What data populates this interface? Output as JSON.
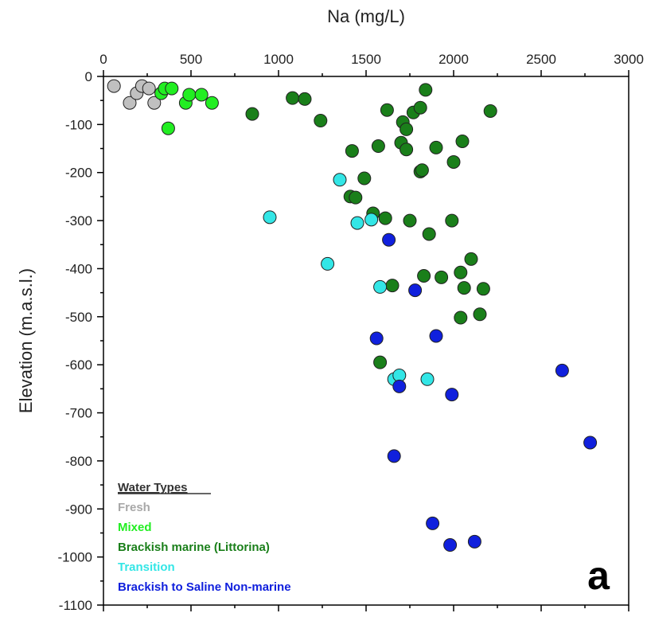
{
  "chart_data": {
    "type": "scatter",
    "xlabel": "Na (mg/L)",
    "ylabel": "Elevation (m.a.s.l.)",
    "xlim": [
      0,
      3000
    ],
    "ylim": [
      -1100,
      0
    ],
    "xticks": [
      0,
      500,
      1000,
      1500,
      2000,
      2500,
      3000
    ],
    "yticks": [
      0,
      -100,
      -200,
      -300,
      -400,
      -500,
      -600,
      -700,
      -800,
      -900,
      -1000,
      -1100
    ],
    "x_axis_position": "top",
    "grid": false,
    "legend_title": "Water Types",
    "legend_position": "bottom-left",
    "panel_label": "a",
    "series": [
      {
        "name": "Fresh",
        "color": "#c0c0c0",
        "points": [
          [
            60,
            -20
          ],
          [
            150,
            -55
          ],
          [
            190,
            -35
          ],
          [
            220,
            -20
          ],
          [
            260,
            -25
          ],
          [
            290,
            -55
          ]
        ]
      },
      {
        "name": "Mixed",
        "color": "#22ee22",
        "points": [
          [
            330,
            -35
          ],
          [
            350,
            -25
          ],
          [
            390,
            -25
          ],
          [
            370,
            -108
          ],
          [
            470,
            -55
          ],
          [
            490,
            -38
          ],
          [
            560,
            -38
          ],
          [
            620,
            -55
          ]
        ]
      },
      {
        "name": "Brackish marine (Littorina)",
        "color": "#1a7f1a",
        "points": [
          [
            850,
            -78
          ],
          [
            1080,
            -45
          ],
          [
            1150,
            -47
          ],
          [
            1240,
            -92
          ],
          [
            1420,
            -155
          ],
          [
            1490,
            -212
          ],
          [
            1410,
            -250
          ],
          [
            1440,
            -252
          ],
          [
            1540,
            -285
          ],
          [
            1570,
            -145
          ],
          [
            1610,
            -295
          ],
          [
            1620,
            -70
          ],
          [
            1650,
            -435
          ],
          [
            1710,
            -95
          ],
          [
            1700,
            -138
          ],
          [
            1730,
            -152
          ],
          [
            1730,
            -110
          ],
          [
            1750,
            -300
          ],
          [
            1770,
            -75
          ],
          [
            1810,
            -65
          ],
          [
            1810,
            -198
          ],
          [
            1820,
            -195
          ],
          [
            1830,
            -415
          ],
          [
            1840,
            -28
          ],
          [
            1860,
            -328
          ],
          [
            1900,
            -148
          ],
          [
            1930,
            -418
          ],
          [
            1990,
            -300
          ],
          [
            2000,
            -178
          ],
          [
            2040,
            -408
          ],
          [
            2050,
            -135
          ],
          [
            2060,
            -440
          ],
          [
            2100,
            -380
          ],
          [
            2040,
            -502
          ],
          [
            2150,
            -495
          ],
          [
            2170,
            -442
          ],
          [
            2210,
            -72
          ],
          [
            1580,
            -595
          ]
        ]
      },
      {
        "name": "Transition",
        "color": "#33e6e6",
        "points": [
          [
            950,
            -293
          ],
          [
            1280,
            -390
          ],
          [
            1350,
            -215
          ],
          [
            1450,
            -305
          ],
          [
            1530,
            -298
          ],
          [
            1580,
            -438
          ],
          [
            1660,
            -630
          ],
          [
            1690,
            -622
          ],
          [
            1850,
            -630
          ]
        ]
      },
      {
        "name": "Brackish to Saline Non-marine",
        "color": "#1020dd",
        "points": [
          [
            1560,
            -545
          ],
          [
            1630,
            -340
          ],
          [
            1660,
            -790
          ],
          [
            1690,
            -645
          ],
          [
            1780,
            -445
          ],
          [
            1900,
            -540
          ],
          [
            1880,
            -930
          ],
          [
            1980,
            -975
          ],
          [
            1990,
            -662
          ],
          [
            2120,
            -968
          ],
          [
            2620,
            -612
          ],
          [
            2780,
            -762
          ]
        ]
      }
    ]
  }
}
